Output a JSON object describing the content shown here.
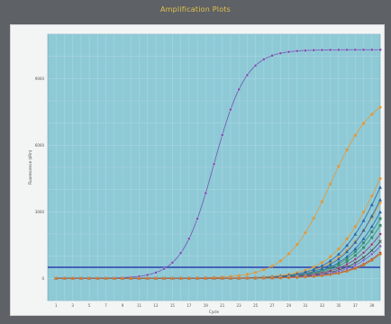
{
  "window": {
    "title": "Amplification Plots"
  },
  "chart_data": {
    "type": "line",
    "title": "Amplification Plots",
    "xlabel": "Cycle",
    "ylabel": "Fluorescence (dRn)",
    "xlim": [
      0,
      40
    ],
    "ylim": [
      -1000,
      11000
    ],
    "yticks": [
      0,
      3000,
      6000,
      9000
    ],
    "xticks": [
      1,
      3,
      5,
      7,
      9,
      11,
      13,
      15,
      17,
      19,
      21,
      23,
      25,
      27,
      29,
      31,
      33,
      35,
      37,
      39
    ],
    "grid": true,
    "plot_background": "#8ec9d6",
    "threshold": {
      "value": 500,
      "color": "#2a3fae"
    },
    "series": [
      {
        "color": "#6f56b3",
        "marker": "circle",
        "curve": {
          "ct": 20,
          "max": 10300,
          "k": 0.52
        }
      },
      {
        "color": "#e39a3b",
        "marker": "diamond",
        "curve": {
          "ct": 34,
          "max": 8500,
          "k": 0.38
        }
      },
      {
        "color": "#e39a3b",
        "marker": "diamond",
        "curve": {
          "ct": 40,
          "max": 9000,
          "k": 0.35
        }
      },
      {
        "color": "#e39a3b",
        "marker": "diamond",
        "curve": {
          "ct": 41.5,
          "max": 9000,
          "k": 0.33
        }
      },
      {
        "color": "#2a66a8",
        "marker": "triangle",
        "curve": {
          "ct": 40.5,
          "max": 9000,
          "k": 0.36
        }
      },
      {
        "color": "#2a66a8",
        "marker": "triangle",
        "curve": {
          "ct": 41.2,
          "max": 9000,
          "k": 0.36
        }
      },
      {
        "color": "#2a66a8",
        "marker": "triangle",
        "curve": {
          "ct": 42,
          "max": 9000,
          "k": 0.35
        }
      },
      {
        "color": "#3b8c6e",
        "marker": "square",
        "curve": {
          "ct": 42.5,
          "max": 9000,
          "k": 0.34
        }
      },
      {
        "color": "#3b8c6e",
        "marker": "square",
        "curve": {
          "ct": 43,
          "max": 9000,
          "k": 0.34
        }
      },
      {
        "color": "#8c3b6e",
        "marker": "circle",
        "curve": {
          "ct": 43.8,
          "max": 9000,
          "k": 0.33
        }
      },
      {
        "color": "#444444",
        "marker": "x",
        "curve": {
          "ct": 44.5,
          "max": 9000,
          "k": 0.33
        }
      },
      {
        "color": "#b23b3b",
        "marker": "circle",
        "curve": {
          "ct": 46,
          "max": 9000,
          "k": 0.32
        }
      },
      {
        "color": "#7a5bc2",
        "marker": "circle",
        "curve": {
          "ct": 45,
          "max": 9000,
          "k": 0.33
        }
      },
      {
        "color": "#c87a2a",
        "marker": "diamond",
        "curve": {
          "ct": 46,
          "max": 9000,
          "k": 0.33
        }
      }
    ]
  }
}
